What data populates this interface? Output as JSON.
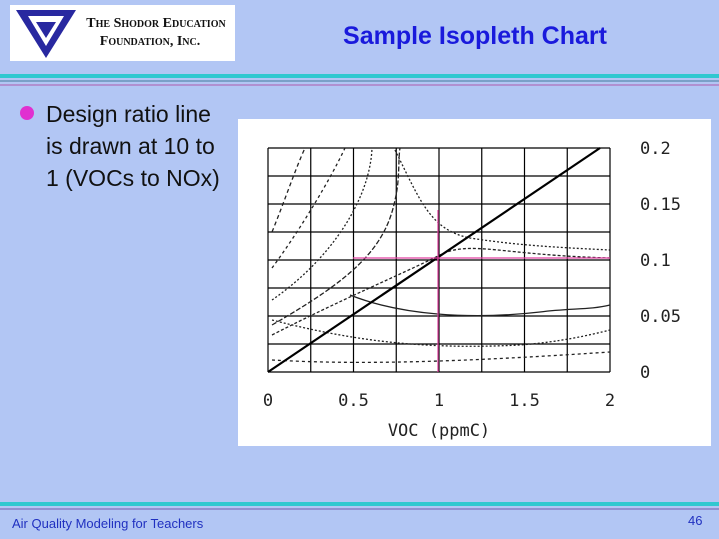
{
  "logo": {
    "line1": "The Shodor Education",
    "line2": "Foundation, Inc."
  },
  "title": "Sample Isopleth Chart",
  "bullet": "Design ratio line is drawn at 10 to 1 (VOCs to NOx)",
  "chart_data": {
    "type": "isopleth",
    "xlabel": "VOC (ppmC)",
    "xlim": [
      0,
      2
    ],
    "ylim": [
      0,
      0.2
    ],
    "xticks": [
      0,
      0.5,
      1,
      1.5,
      2
    ],
    "yticks": [
      0,
      0.05,
      0.1,
      0.15,
      0.2
    ]
  },
  "footer": {
    "text": "Air Quality Modeling for Teachers",
    "page": "46"
  }
}
